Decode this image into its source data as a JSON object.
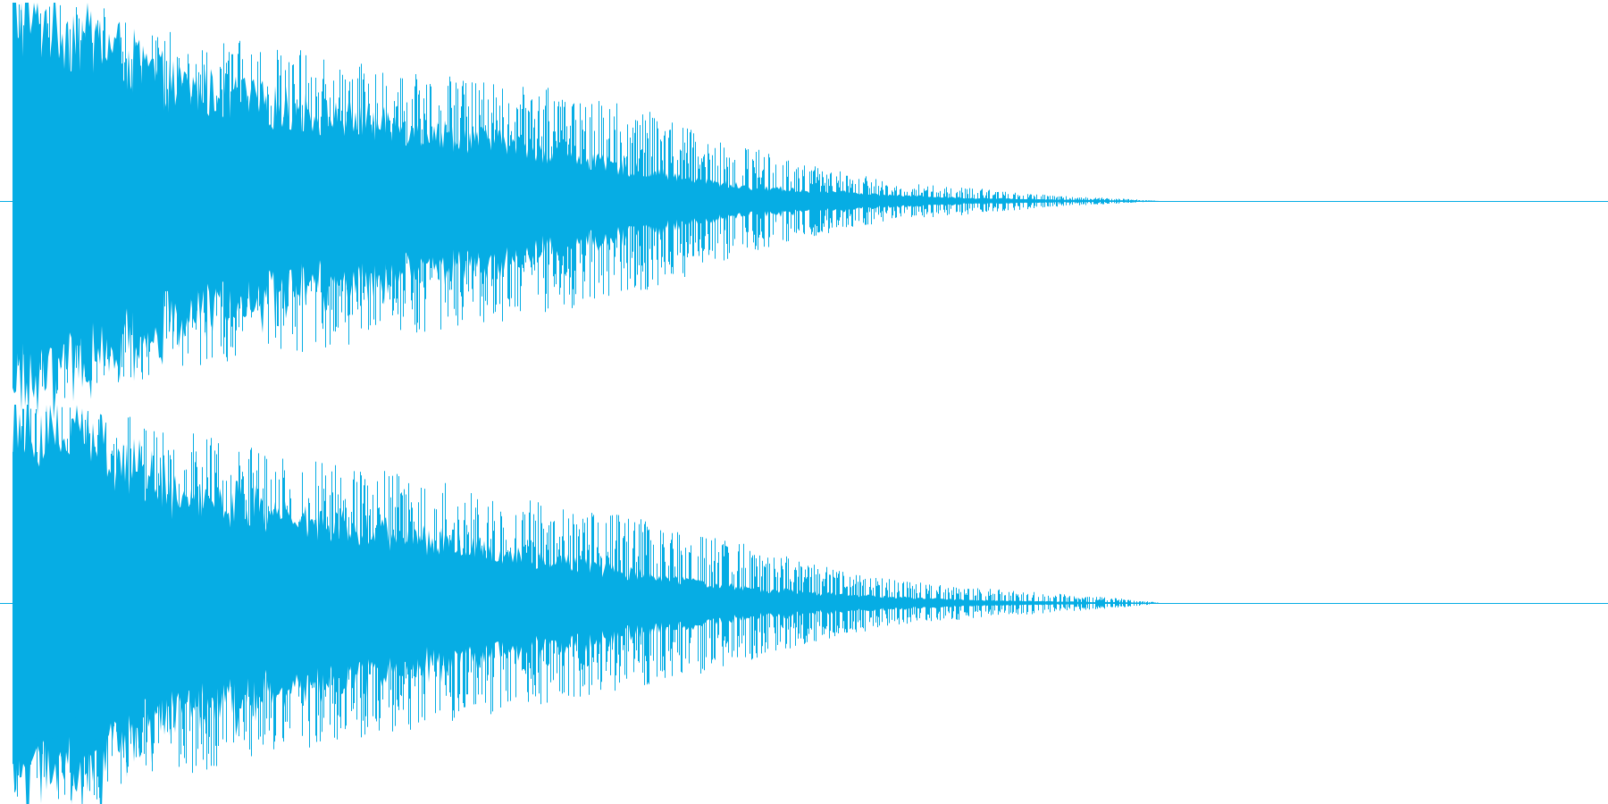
{
  "chart_data": {
    "type": "area",
    "title": "",
    "xlabel": "",
    "ylabel": "",
    "grid": false,
    "legend": "none",
    "color": "#06ade4",
    "x": [
      0.0,
      0.02,
      0.05,
      0.1,
      0.15,
      0.2,
      0.25,
      0.3,
      0.35,
      0.4,
      0.45,
      0.5,
      0.55,
      0.6,
      0.65,
      0.7,
      0.72,
      1.0
    ],
    "xlim": [
      0,
      1
    ],
    "ylim": [
      -1,
      1
    ],
    "series": [
      {
        "channel": 1,
        "peak": [
          1.0,
          1.0,
          1.0,
          0.85,
          0.8,
          0.75,
          0.68,
          0.62,
          0.55,
          0.45,
          0.3,
          0.18,
          0.1,
          0.07,
          0.03,
          0.01,
          0.0,
          0.0
        ],
        "body": [
          0.95,
          0.9,
          0.82,
          0.58,
          0.5,
          0.42,
          0.36,
          0.3,
          0.22,
          0.14,
          0.08,
          0.05,
          0.03,
          0.015,
          0.008,
          0.003,
          0.0,
          0.0
        ]
      },
      {
        "channel": 2,
        "peak": [
          1.0,
          1.0,
          1.0,
          0.88,
          0.8,
          0.72,
          0.64,
          0.56,
          0.48,
          0.42,
          0.32,
          0.2,
          0.12,
          0.08,
          0.05,
          0.02,
          0.0,
          0.0
        ],
        "body": [
          0.95,
          0.9,
          0.82,
          0.56,
          0.48,
          0.4,
          0.33,
          0.26,
          0.2,
          0.13,
          0.08,
          0.05,
          0.03,
          0.015,
          0.008,
          0.003,
          0.0,
          0.0
        ]
      }
    ]
  }
}
